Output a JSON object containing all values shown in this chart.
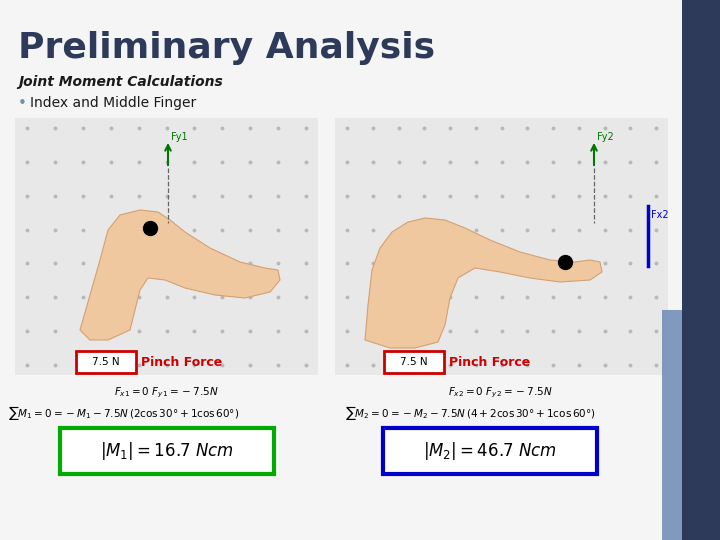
{
  "title": "Preliminary Analysis",
  "subtitle": "Joint Moment Calculations",
  "bullet": "Index and Middle Finger",
  "title_color": "#2E3A59",
  "subtitle_color": "#1a1a1a",
  "slide_bg": "#f5f5f5",
  "right_bar_color": "#2E3A59",
  "right_bar_color2": "#6a8ab5",
  "pinch_force_value": "7.5 N",
  "pinch_force_label": "Pinch Force",
  "red_box_color": "#cc0000",
  "green_box_color": "#00aa00",
  "blue_box_color": "#0000cc",
  "arrow_color": "#007700",
  "blue_line_color": "#0000cc",
  "dot_grid_color": "#b8b8b8",
  "hand_color": "#f0c8a0",
  "hand_edge": "#d4a070",
  "panel_bg": "#e8e8e8"
}
